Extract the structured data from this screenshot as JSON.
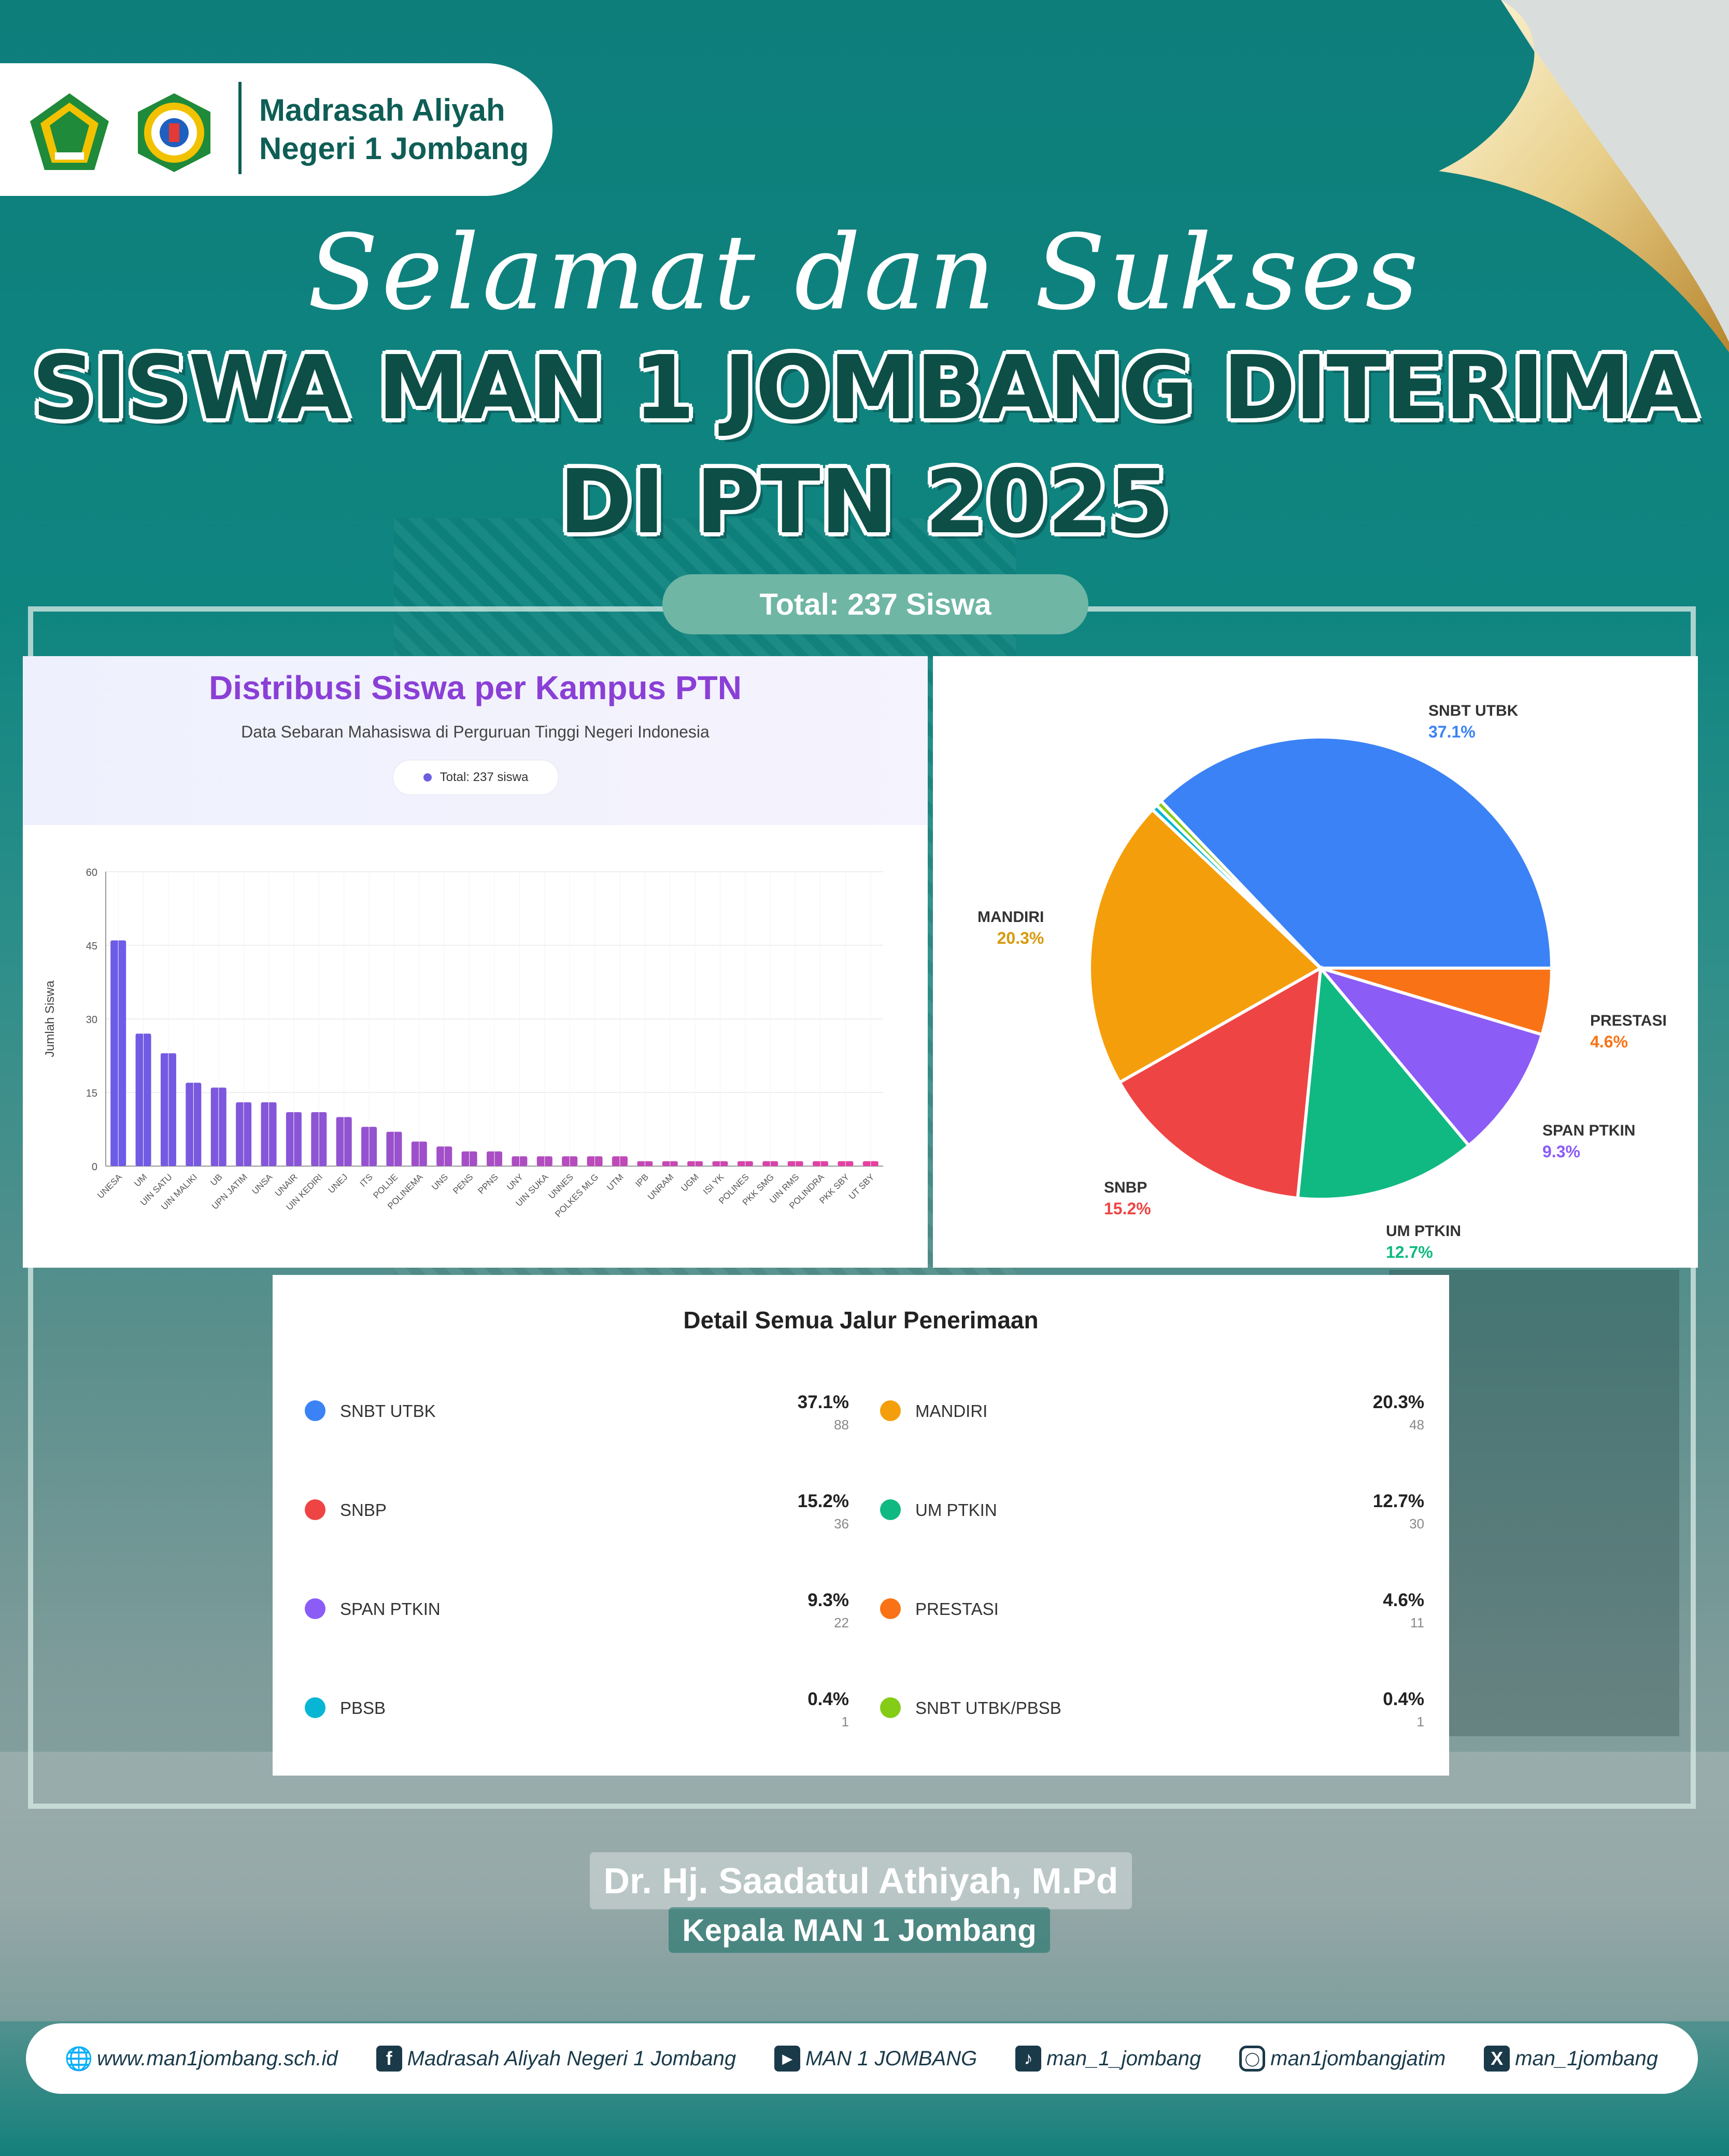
{
  "header": {
    "school_name_line1": "Madrasah Aliyah",
    "school_name_line2": "Negeri 1 Jombang"
  },
  "titles": {
    "script": "Selamat dan Sukses",
    "line1": "SISWA MAN 1 JOMBANG DITERIMA",
    "line2": "DI PTN 2025",
    "total": "Total: 237 Siswa"
  },
  "chart_data": [
    {
      "type": "bar",
      "title": "Distribusi Siswa per Kampus PTN",
      "subtitle": "Data Sebaran Mahasiswa di Perguruan Tinggi Negeri Indonesia",
      "badge": "Total: 237 siswa",
      "ylabel": "Jumlah Siswa",
      "xlabel": "",
      "ylim": [
        0,
        60
      ],
      "yticks": [
        0,
        15,
        30,
        45,
        60
      ],
      "grid": true,
      "categories": [
        "UNESA",
        "UM",
        "UIN SATU",
        "UIN MALIKI",
        "UB",
        "UPN JATIM",
        "UNSA",
        "UNAIR",
        "UIN KEDIRI",
        "UNEJ",
        "ITS",
        "POLIJE",
        "POLINEMA",
        "UNS",
        "PENS",
        "PPNS",
        "UNY",
        "UIN SUKA",
        "UNNES",
        "POLKES MLG",
        "UTM",
        "IPB",
        "UNRAM",
        "UGM",
        "ISI YK",
        "POLINES",
        "PKK SMG",
        "UIN RMS",
        "POLINDRA",
        "PKK SBY",
        "UT SBY"
      ],
      "values": [
        46,
        27,
        23,
        17,
        16,
        13,
        13,
        11,
        11,
        10,
        8,
        7,
        5,
        4,
        3,
        3,
        2,
        2,
        2,
        2,
        2,
        1,
        1,
        1,
        1,
        1,
        1,
        1,
        1,
        1,
        1
      ],
      "color_start": "#6c5ce7",
      "color_end": "#e83fa1"
    },
    {
      "type": "pie",
      "categories": [
        "SNBT UTBK",
        "PRESTASI",
        "SPAN PTKIN",
        "UM PTKIN",
        "SNBP",
        "MANDIRI",
        "PBSB",
        "SNBT UTBK/PBSB"
      ],
      "values": [
        88,
        11,
        22,
        30,
        36,
        48,
        1,
        1
      ],
      "percent": [
        "37.1%",
        "4.6%",
        "9.3%",
        "12.7%",
        "15.2%",
        "20.3%",
        "0.4%",
        "0.4%"
      ],
      "colors": [
        "#3b82f6",
        "#f97316",
        "#8b5cf6",
        "#10b981",
        "#ef4444",
        "#f59e0b",
        "#06b6d4",
        "#84cc16"
      ]
    }
  ],
  "pie_labels": [
    {
      "name": "SNBT UTBK",
      "pct": "37.1%",
      "color": "#3b82f6"
    },
    {
      "name": "MANDIRI",
      "pct": "20.3%",
      "color": "#d89a0c"
    },
    {
      "name": "PRESTASI",
      "pct": "4.6%",
      "color": "#f97316"
    },
    {
      "name": "SPAN PTKIN",
      "pct": "9.3%",
      "color": "#8b5cf6"
    },
    {
      "name": "SNBP",
      "pct": "15.2%",
      "color": "#ef4444"
    },
    {
      "name": "UM PTKIN",
      "pct": "12.7%",
      "color": "#10b981"
    }
  ],
  "detail": {
    "title": "Detail Semua Jalur Penerimaan",
    "items": [
      {
        "name": "SNBT UTBK",
        "pct": "37.1%",
        "count": "88",
        "color": "#3b82f6"
      },
      {
        "name": "MANDIRI",
        "pct": "20.3%",
        "count": "48",
        "color": "#f59e0b"
      },
      {
        "name": "SNBP",
        "pct": "15.2%",
        "count": "36",
        "color": "#ef4444"
      },
      {
        "name": "UM PTKIN",
        "pct": "12.7%",
        "count": "30",
        "color": "#10b981"
      },
      {
        "name": "SPAN PTKIN",
        "pct": "9.3%",
        "count": "22",
        "color": "#8b5cf6"
      },
      {
        "name": "PRESTASI",
        "pct": "4.6%",
        "count": "11",
        "color": "#f97316"
      },
      {
        "name": "PBSB",
        "pct": "0.4%",
        "count": "1",
        "color": "#06b6d4"
      },
      {
        "name": "SNBT UTBK/PBSB",
        "pct": "0.4%",
        "count": "1",
        "color": "#84cc16"
      }
    ]
  },
  "principal": {
    "name": "Dr. Hj. Saadatul Athiyah, M.Pd",
    "title": "Kepala MAN 1 Jombang"
  },
  "footer": {
    "website": "www.man1jombang.sch.id",
    "facebook": "Madrasah Aliyah Negeri 1 Jombang",
    "youtube": "MAN 1 JOMBANG",
    "tiktok": "man_1_jombang",
    "instagram": "man1jombangjatim",
    "x": "man_1jombang"
  },
  "icons": [
    "kemenag-logo",
    "school-logo",
    "globe-icon",
    "facebook-icon",
    "youtube-icon",
    "tiktok-icon",
    "instagram-icon",
    "x-icon"
  ]
}
